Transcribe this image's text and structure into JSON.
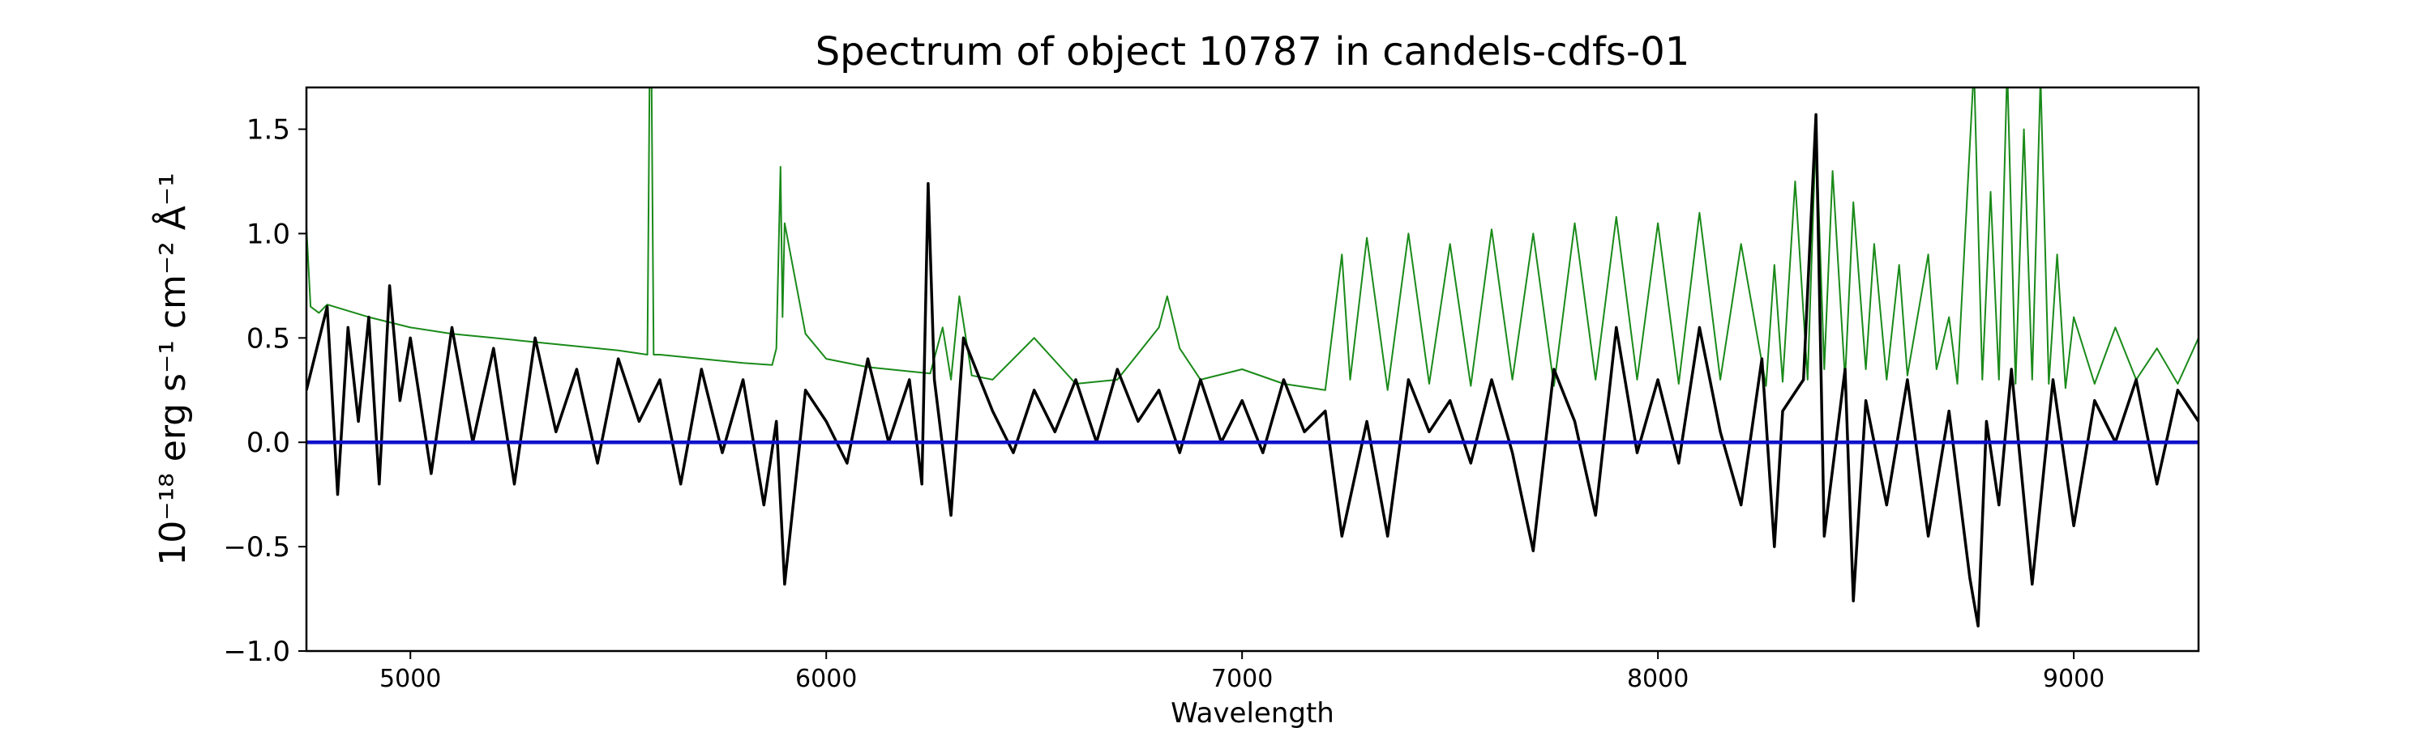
{
  "chart_data": {
    "type": "line",
    "title": "Spectrum of object 10787 in candels-cdfs-01",
    "xlabel": "Wavelength",
    "ylabel": "10⁻¹⁸ erg s⁻¹ cm⁻² Å⁻¹",
    "xlim": [
      4750,
      9300
    ],
    "ylim": [
      -1.0,
      1.7
    ],
    "x_ticks": [
      5000,
      6000,
      7000,
      8000,
      9000
    ],
    "x_tick_labels": [
      "5000",
      "6000",
      "7000",
      "8000",
      "9000"
    ],
    "y_ticks": [
      -1.0,
      -0.5,
      0.0,
      0.5,
      1.0,
      1.5
    ],
    "y_tick_labels": [
      "−1.0",
      "−0.5",
      "0.0",
      "0.5",
      "1.0",
      "1.5"
    ],
    "grid": false,
    "legend": "none",
    "series": [
      {
        "role": "flux",
        "color": "#000000",
        "x": [
          4750,
          4775,
          4800,
          4825,
          4850,
          4875,
          4900,
          4925,
          4950,
          4975,
          5000,
          5050,
          5100,
          5150,
          5200,
          5250,
          5300,
          5350,
          5400,
          5450,
          5500,
          5550,
          5600,
          5650,
          5700,
          5750,
          5800,
          5850,
          5880,
          5900,
          5950,
          6000,
          6050,
          6100,
          6150,
          6200,
          6230,
          6245,
          6260,
          6300,
          6330,
          6400,
          6450,
          6500,
          6550,
          6600,
          6650,
          6700,
          6750,
          6800,
          6850,
          6900,
          6950,
          7000,
          7050,
          7100,
          7150,
          7200,
          7240,
          7300,
          7350,
          7400,
          7450,
          7500,
          7550,
          7600,
          7650,
          7700,
          7750,
          7800,
          7850,
          7900,
          7950,
          8000,
          8050,
          8100,
          8150,
          8200,
          8250,
          8280,
          8300,
          8350,
          8380,
          8400,
          8450,
          8470,
          8500,
          8550,
          8600,
          8650,
          8700,
          8750,
          8770,
          8790,
          8820,
          8850,
          8900,
          8950,
          9000,
          9050,
          9100,
          9150,
          9200,
          9250,
          9300
        ],
        "y": [
          0.25,
          0.45,
          0.65,
          -0.25,
          0.55,
          0.1,
          0.6,
          -0.2,
          0.75,
          0.2,
          0.5,
          -0.15,
          0.55,
          0.0,
          0.45,
          -0.2,
          0.5,
          0.05,
          0.35,
          -0.1,
          0.4,
          0.1,
          0.3,
          -0.2,
          0.35,
          -0.05,
          0.3,
          -0.3,
          0.1,
          -0.68,
          0.25,
          0.1,
          -0.1,
          0.4,
          0.0,
          0.3,
          -0.2,
          1.24,
          0.3,
          -0.35,
          0.5,
          0.15,
          -0.05,
          0.25,
          0.05,
          0.3,
          0.0,
          0.35,
          0.1,
          0.25,
          -0.05,
          0.3,
          0.0,
          0.2,
          -0.05,
          0.3,
          0.05,
          0.15,
          -0.45,
          0.1,
          -0.45,
          0.3,
          0.05,
          0.2,
          -0.1,
          0.3,
          -0.05,
          -0.52,
          0.35,
          0.1,
          -0.35,
          0.55,
          -0.05,
          0.3,
          -0.1,
          0.55,
          0.05,
          -0.3,
          0.4,
          -0.5,
          0.15,
          0.3,
          1.57,
          -0.45,
          0.35,
          -0.76,
          0.2,
          -0.3,
          0.3,
          -0.45,
          0.15,
          -0.65,
          -0.88,
          0.1,
          -0.3,
          0.35,
          -0.68,
          0.3,
          -0.4,
          0.2,
          0.0,
          0.3,
          -0.2,
          0.25,
          0.1
        ]
      },
      {
        "role": "error",
        "color": "#1a8a1a",
        "x": [
          4750,
          4760,
          4780,
          4800,
          4900,
          5000,
          5100,
          5200,
          5300,
          5400,
          5500,
          5570,
          5575,
          5580,
          5585,
          5600,
          5700,
          5800,
          5870,
          5880,
          5890,
          5895,
          5900,
          5950,
          6000,
          6100,
          6200,
          6250,
          6280,
          6300,
          6320,
          6350,
          6400,
          6500,
          6600,
          6700,
          6800,
          6820,
          6850,
          6900,
          7000,
          7100,
          7200,
          7240,
          7260,
          7300,
          7350,
          7400,
          7450,
          7500,
          7550,
          7600,
          7650,
          7700,
          7750,
          7800,
          7850,
          7900,
          7950,
          8000,
          8050,
          8100,
          8150,
          8200,
          8260,
          8280,
          8300,
          8330,
          8360,
          8380,
          8400,
          8420,
          8450,
          8470,
          8500,
          8520,
          8550,
          8580,
          8600,
          8650,
          8670,
          8700,
          8720,
          8760,
          8780,
          8800,
          8820,
          8840,
          8860,
          8880,
          8900,
          8920,
          8940,
          8960,
          8980,
          9000,
          9050,
          9100,
          9150,
          9200,
          9250,
          9300
        ],
        "y": [
          1.03,
          0.65,
          0.62,
          0.66,
          0.6,
          0.55,
          0.52,
          0.5,
          0.48,
          0.46,
          0.44,
          0.42,
          1.7,
          1.7,
          0.42,
          0.42,
          0.4,
          0.38,
          0.37,
          0.45,
          1.32,
          0.6,
          1.05,
          0.52,
          0.4,
          0.36,
          0.34,
          0.33,
          0.55,
          0.3,
          0.7,
          0.32,
          0.3,
          0.5,
          0.28,
          0.3,
          0.55,
          0.7,
          0.45,
          0.3,
          0.35,
          0.28,
          0.25,
          0.9,
          0.3,
          0.98,
          0.25,
          1.0,
          0.28,
          0.95,
          0.27,
          1.02,
          0.3,
          1.0,
          0.27,
          1.05,
          0.3,
          1.08,
          0.3,
          1.05,
          0.28,
          1.1,
          0.3,
          0.95,
          0.27,
          0.85,
          0.29,
          1.25,
          0.3,
          1.5,
          0.35,
          1.3,
          0.3,
          1.15,
          0.35,
          0.95,
          0.3,
          0.85,
          0.32,
          0.9,
          0.35,
          0.6,
          0.28,
          1.8,
          0.3,
          1.2,
          0.3,
          1.8,
          0.28,
          1.5,
          0.3,
          1.75,
          0.28,
          0.9,
          0.26,
          0.6,
          0.28,
          0.55,
          0.3,
          0.45,
          0.28,
          0.5
        ]
      },
      {
        "role": "zero",
        "color": "#1010cc",
        "x": [
          4750,
          9300
        ],
        "y": [
          0,
          0
        ]
      }
    ]
  }
}
